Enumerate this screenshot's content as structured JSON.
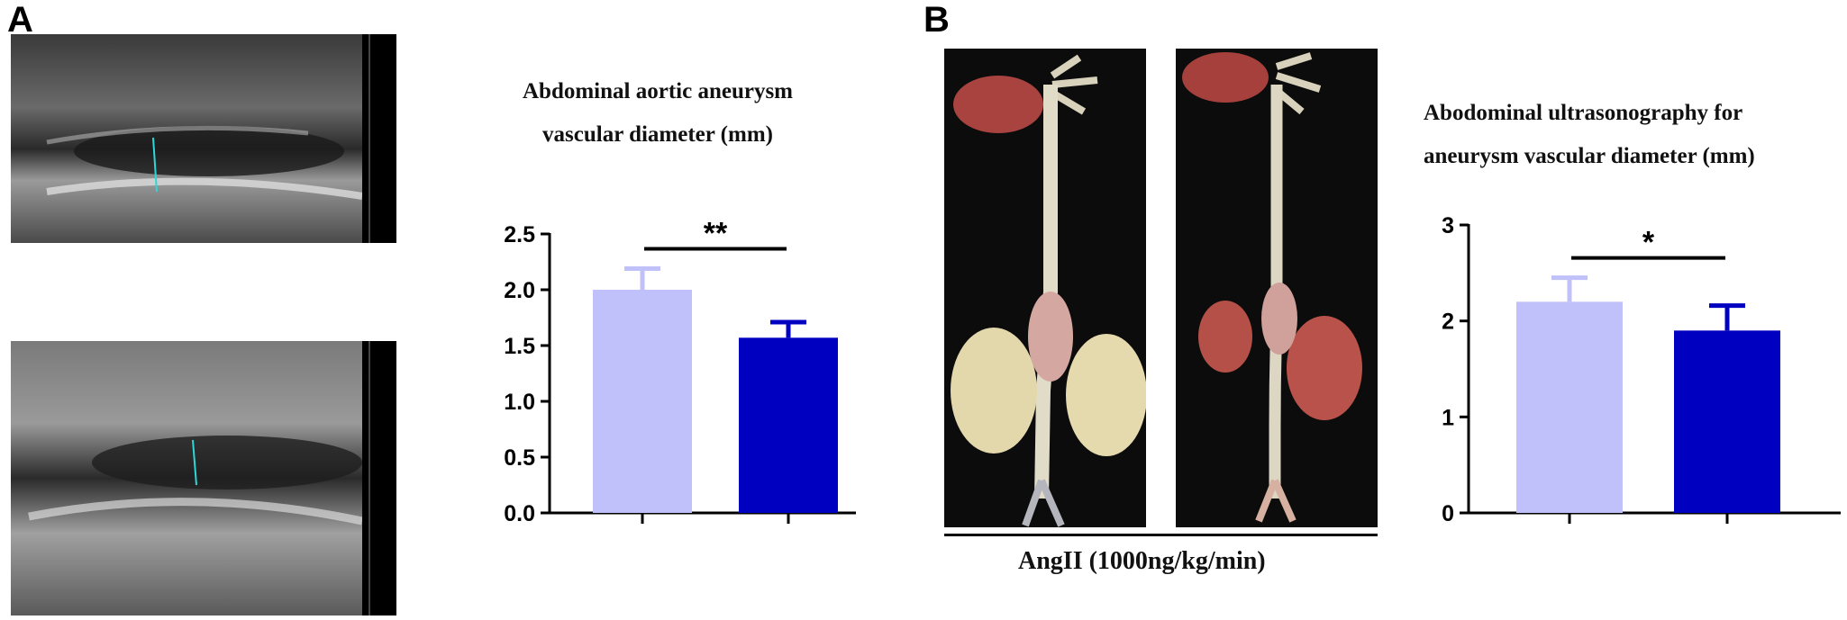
{
  "panel_a": {
    "label": "A",
    "chart_title_line1": "Abdominal aortic aneurysm",
    "chart_title_line2": "vascular diameter (mm)"
  },
  "panel_b": {
    "label": "B",
    "treatment_label": "AngII (1000ng/kg/min)",
    "chart_title_line1": "Abodominal ultrasonography for",
    "chart_title_line2": "aneurysm vascular diameter (mm)"
  },
  "colors": {
    "light_bar": "#c0c0fa",
    "dark_bar": "#0000c0",
    "axis": "#000000",
    "ultrasound_bg": "#1b1b1b",
    "photo_bg": "#0c0c0c"
  },
  "chart_data": [
    {
      "type": "bar",
      "title": "Abdominal aortic aneurysm vascular diameter (mm)",
      "categories": [
        "",
        ""
      ],
      "values": [
        2.0,
        1.57
      ],
      "errors": [
        0.19,
        0.14
      ],
      "bar_colors": [
        "#c0c0fa",
        "#0000c0"
      ],
      "ylim": [
        0,
        2.5
      ],
      "yticks": [
        "0.0",
        "0.5",
        "1.0",
        "1.5",
        "2.0",
        "2.5"
      ],
      "significance": "**",
      "grid": false
    },
    {
      "type": "bar",
      "title": "Abodominal ultrasonography for aneurysm vascular diameter (mm)",
      "categories": [
        "",
        ""
      ],
      "values": [
        2.2,
        1.9
      ],
      "errors": [
        0.25,
        0.26
      ],
      "bar_colors": [
        "#c0c0fa",
        "#0000c0"
      ],
      "ylim": [
        0,
        3
      ],
      "yticks": [
        "0",
        "1",
        "2",
        "3"
      ],
      "significance": "*",
      "grid": false
    }
  ]
}
